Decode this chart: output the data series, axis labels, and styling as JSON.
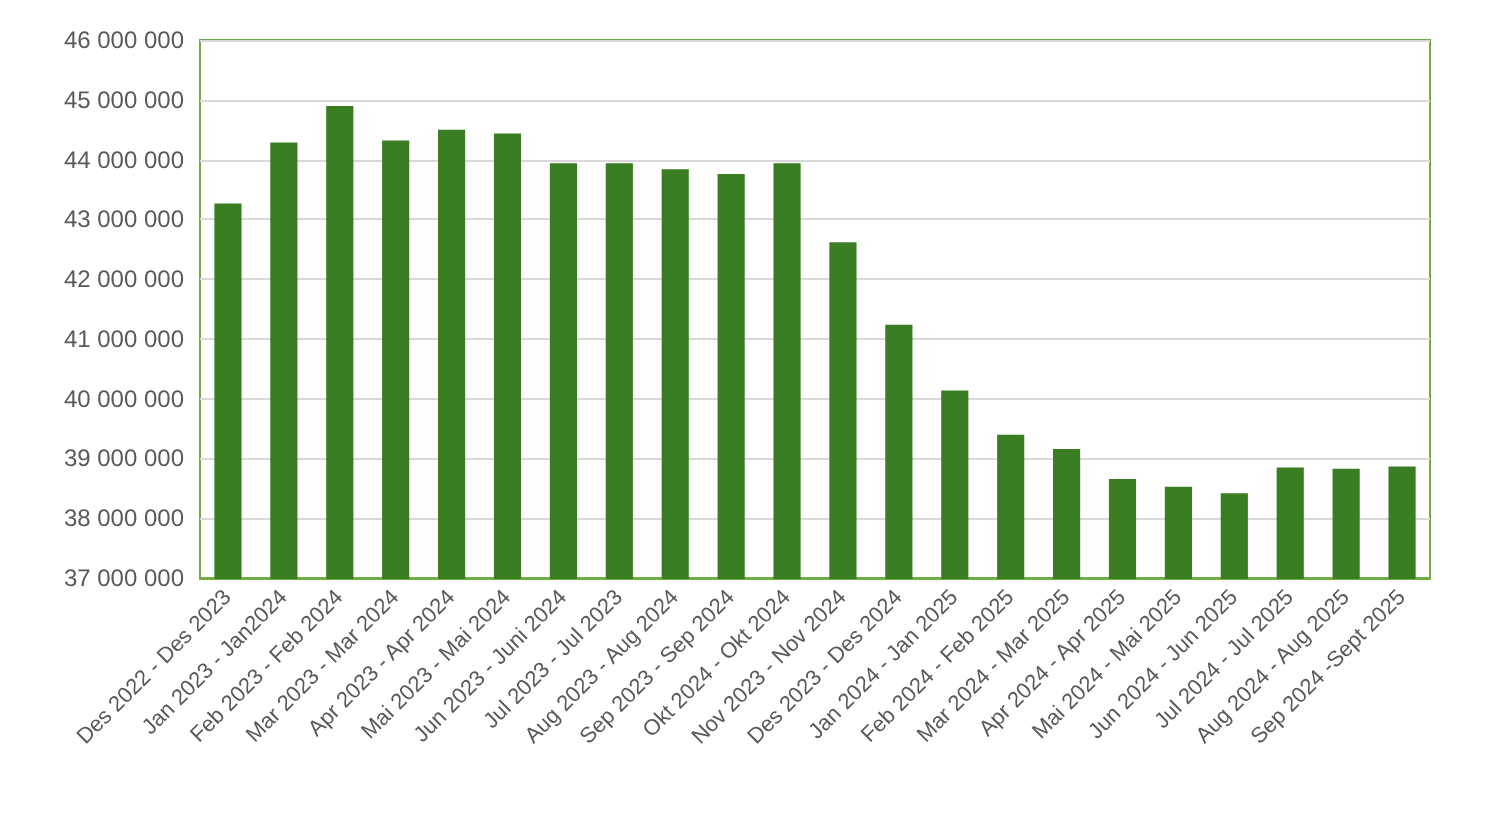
{
  "chart_data": {
    "type": "bar",
    "categories": [
      "Des 2022 - Des 2023",
      "Jan 2023 - Jan2024",
      "Feb 2023 - Feb 2024",
      "Mar 2023 - Mar 2024",
      "Apr 2023 - Apr 2024",
      "Mai 2023 - Mai 2024",
      "Jun 2023 - Juni 2024",
      "Jul 2023 - Jul 2023",
      "Aug 2023 - Aug 2024",
      "Sep 2023 - Sep 2024",
      "Okt 2024 - Okt 2024",
      "Nov 2023 - Nov 2024",
      "Des 2023 - Des 2024",
      "Jan 2024 - Jan 2025",
      "Feb 2024 - Feb 2025",
      "Mar 2024 - Mar 2025",
      "Apr 2024 - Apr 2025",
      "Mai 2024 - Mai 2025",
      "Jun 2024 - Jun 2025",
      "Jul 2024 - Jul 2025",
      "Aug 2024 - Aug 2025",
      "Sep 2024 -Sept 2025"
    ],
    "values": [
      43250000,
      44270000,
      44880000,
      44300000,
      44480000,
      44420000,
      43920000,
      43920000,
      43820000,
      43740000,
      43920000,
      42600000,
      41220000,
      40120000,
      39380000,
      39140000,
      38640000,
      38510000,
      38400000,
      38830000,
      38810000,
      38850000
    ],
    "color": "#3a7d22",
    "ylim": [
      37000000,
      46000000
    ],
    "yticks": [
      37000000,
      38000000,
      39000000,
      40000000,
      41000000,
      42000000,
      43000000,
      44000000,
      45000000,
      46000000
    ],
    "grid": "y"
  }
}
